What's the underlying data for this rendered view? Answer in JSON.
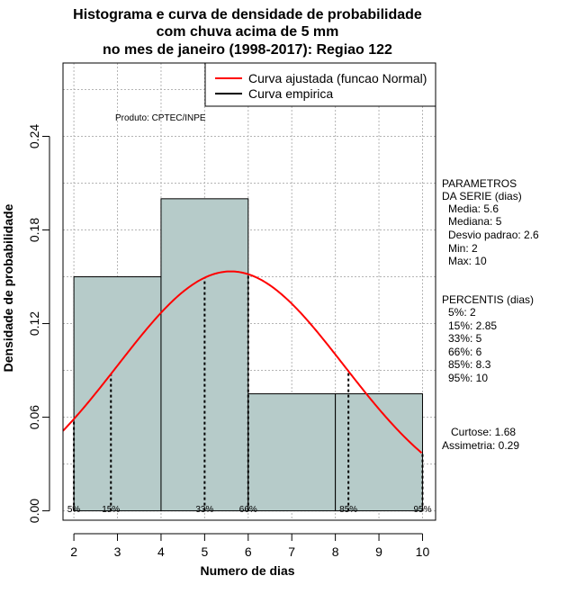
{
  "chart_data": {
    "type": "bar",
    "title_lines": [
      "Histograma e curva de densidade de probabilidade",
      "com chuva acima de 5 mm",
      "no mes de janeiro (1998-2017): Regiao 122"
    ],
    "xlabel": "Numero de dias",
    "ylabel": "Densidade de probabilidade",
    "xlim": [
      1.75,
      10.3
    ],
    "ylim": [
      -0.006,
      0.287
    ],
    "x_ticks": [
      2,
      3,
      4,
      5,
      6,
      7,
      8,
      9,
      10
    ],
    "x_tick_labels": [
      "2",
      "3",
      "4",
      "5",
      "6",
      "7",
      "8",
      "9",
      "10"
    ],
    "y_ticks": [
      0.0,
      0.06,
      0.12,
      0.18,
      0.24
    ],
    "y_tick_labels": [
      "0.00",
      "0.06",
      "0.12",
      "0.18",
      "0.24"
    ],
    "grid": true,
    "bins": [
      {
        "x0": 2,
        "x1": 4,
        "density": 0.15
      },
      {
        "x0": 4,
        "x1": 6,
        "density": 0.2
      },
      {
        "x0": 6,
        "x1": 8,
        "density": 0.075
      },
      {
        "x0": 8,
        "x1": 10,
        "density": 0.075
      }
    ],
    "bar_color": "#b6cbc9",
    "normal_curve": {
      "mean": 5.6,
      "sd": 2.6,
      "color": "#ff0000"
    },
    "percentiles": [
      {
        "label": "5%",
        "x": 2
      },
      {
        "label": "15%",
        "x": 2.85
      },
      {
        "label": "33%",
        "x": 5
      },
      {
        "label": "66%",
        "x": 6
      },
      {
        "label": "85%",
        "x": 8.3
      },
      {
        "label": "95%",
        "x": 10
      }
    ],
    "legend": {
      "position": "top-right",
      "entries": [
        {
          "label": "Curva ajustada (funcao Normal)",
          "color": "#ff0000"
        },
        {
          "label": "Curva empirica",
          "color": "#000000"
        }
      ]
    },
    "source_label": "Produto: CPTEC/INPE",
    "parameters": {
      "heading": [
        "PARAMETROS",
        "DA SERIE (dias)"
      ],
      "lines": [
        "Media: 5.6",
        "Mediana: 5",
        "Desvio padrao: 2.6",
        "Min: 2",
        "Max: 10"
      ]
    },
    "percentis": {
      "heading": "PERCENTIS (dias)",
      "lines": [
        "5%: 2",
        "15%: 2.85",
        "33%: 5",
        "66%: 6",
        "85%: 8.3",
        "95%: 10"
      ]
    },
    "shape": {
      "lines": [
        "Curtose: 1.68",
        "Assimetria: 0.29"
      ]
    }
  }
}
